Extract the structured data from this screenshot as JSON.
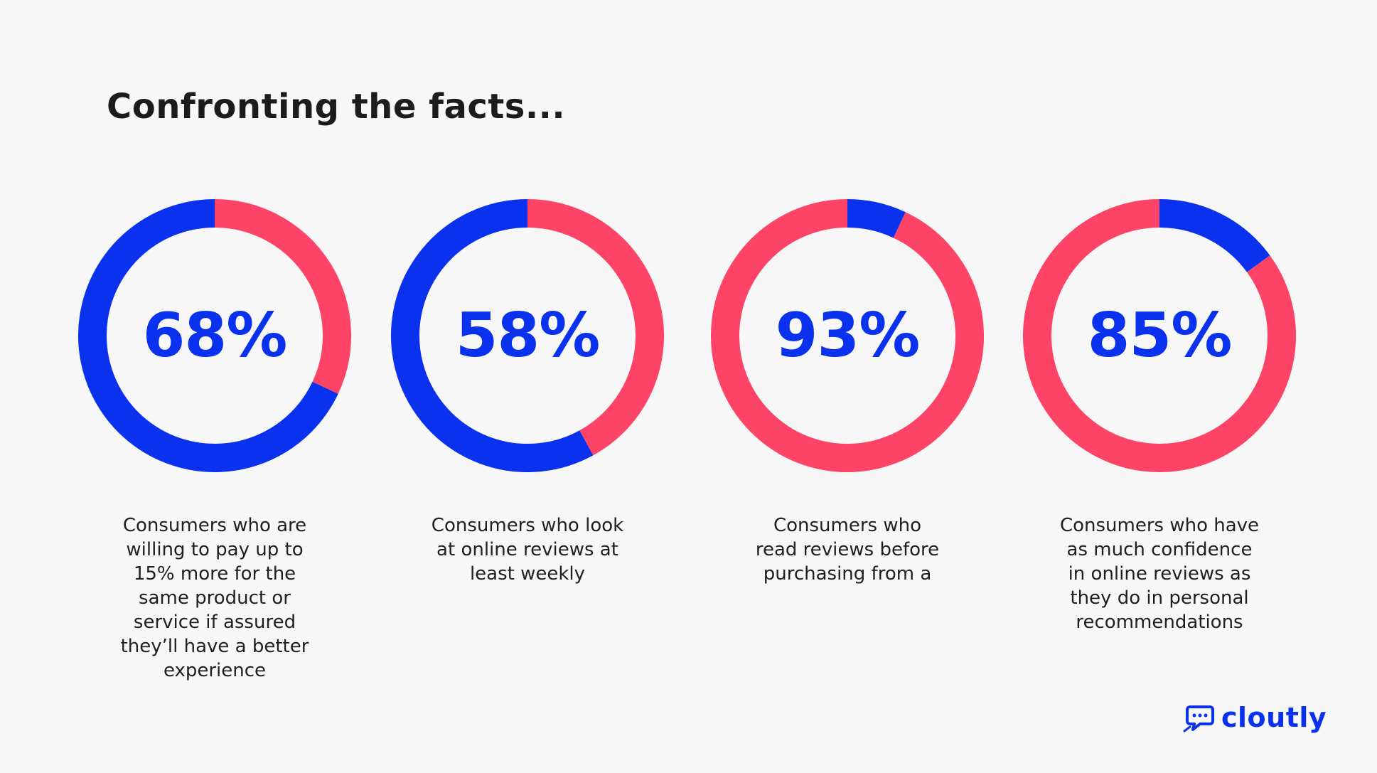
{
  "title": "Confronting the facts...",
  "colors": {
    "highlight": "#0a32ee",
    "remainder": "#fd4466",
    "percent_text": "#0a32ee",
    "title_text": "#1c1c1c",
    "background": "#f7f7f7"
  },
  "chart_data": [
    {
      "type": "pie",
      "style": "donut",
      "center_label": "68%",
      "values": [
        68,
        32
      ],
      "colors": [
        "#0a32ee",
        "#fd4466"
      ],
      "caption": [
        "Consumers who are",
        "willing to pay up to",
        "15% more for the",
        "same product or",
        "service if assured",
        "they’ll have a better",
        "experience"
      ]
    },
    {
      "type": "pie",
      "style": "donut",
      "center_label": "58%",
      "values": [
        58,
        42
      ],
      "colors": [
        "#0a32ee",
        "#fd4466"
      ],
      "caption": [
        "Consumers who look",
        "at online reviews at",
        "least weekly"
      ]
    },
    {
      "type": "pie",
      "style": "donut",
      "center_label": "93%",
      "values": [
        93,
        7
      ],
      "colors": [
        "#fd4466",
        "#0a32ee"
      ],
      "caption": [
        "Consumers who",
        "read reviews before",
        "purchasing from a"
      ]
    },
    {
      "type": "pie",
      "style": "donut",
      "center_label": "85%",
      "values": [
        85,
        15
      ],
      "colors": [
        "#fd4466",
        "#0a32ee"
      ],
      "caption": [
        "Consumers who have",
        "as much confidence",
        "in online reviews as",
        "they do in personal",
        "recommendations"
      ]
    }
  ],
  "logo": {
    "text": "cloutly",
    "icon": "speech-bubble-rocket-icon"
  }
}
